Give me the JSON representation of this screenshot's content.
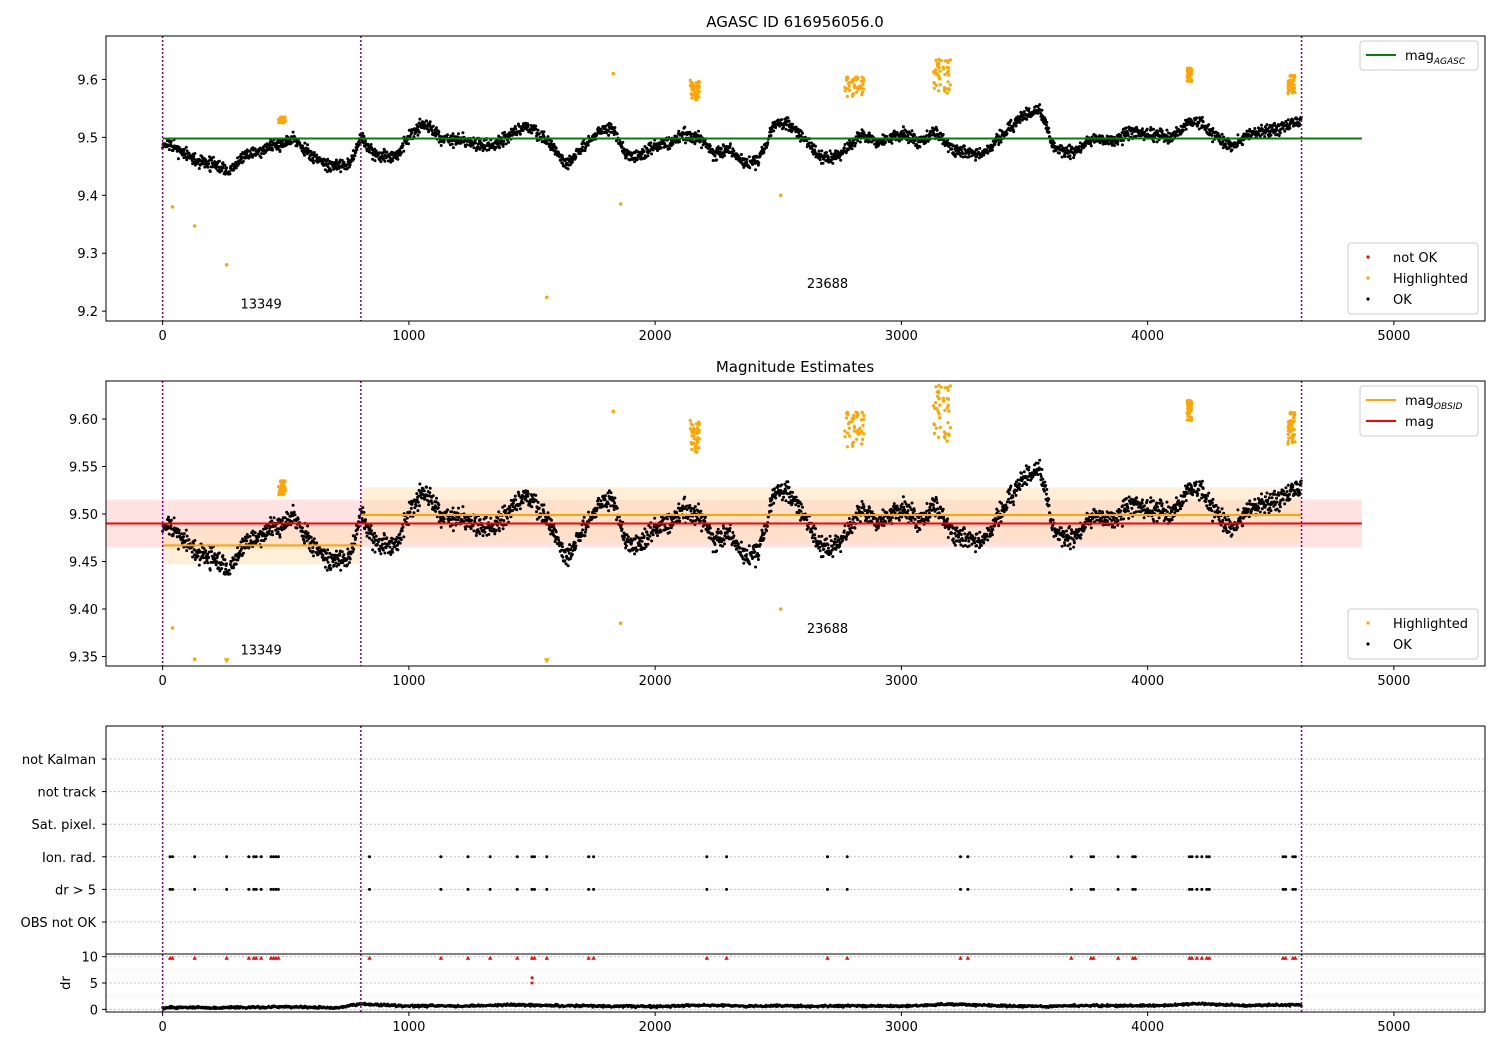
{
  "colors": {
    "ok": "#000000",
    "highlighted": "#ffa500",
    "not_ok": "#ff0000",
    "mag_agasc_line": "#008000",
    "mag_obsid_line": "#ffa500",
    "mag_line": "#ff0000",
    "obsid_boundary": "#800080",
    "band_mag": "#ffc0c0",
    "band_obsid": "#ffdcaa"
  },
  "chart_data": [
    {
      "type": "scatter",
      "title": "AGASC ID 616956056.0",
      "xlim": [
        -230,
        5370
      ],
      "ylim": [
        9.183,
        9.675
      ],
      "xticks": [
        0,
        1000,
        2000,
        3000,
        4000,
        5000
      ],
      "yticks": [
        9.2,
        9.3,
        9.4,
        9.5,
        9.6
      ],
      "ytick_labels": [
        "9.2",
        "9.3",
        "9.4",
        "9.5",
        "9.6"
      ],
      "grid": false,
      "obsid_boundaries": [
        0,
        805,
        4625
      ],
      "obsid_labels": [
        {
          "text": "13349",
          "x": 400,
          "y": 9.205
        },
        {
          "text": "23688",
          "x": 2700,
          "y": 9.24
        }
      ],
      "lines": [
        {
          "key": "mag_agasc",
          "y": 9.498,
          "x": [
            0,
            4870
          ],
          "color": "#008000"
        }
      ],
      "legends": [
        {
          "position": "top-right",
          "entries": [
            {
              "kind": "line",
              "color": "#008000",
              "label": "mag",
              "sub": "AGASC"
            }
          ]
        },
        {
          "position": "bottom-right",
          "entries": [
            {
              "kind": "dot",
              "color": "#ff0000",
              "label": "not OK"
            },
            {
              "kind": "dot",
              "color": "#ffa500",
              "label": "Highlighted"
            },
            {
              "kind": "dot",
              "color": "#000000",
              "label": "OK"
            }
          ]
        }
      ],
      "highlighted_points": [
        [
          40,
          9.38
        ],
        [
          130,
          9.347
        ],
        [
          260,
          9.28
        ],
        [
          1830,
          9.61
        ],
        [
          1860,
          9.385
        ],
        [
          1560,
          9.224
        ],
        [
          2510,
          9.4
        ]
      ],
      "highlighted_clusters": [
        {
          "x": [
            470,
            500
          ],
          "y": [
            9.525,
            9.535
          ]
        },
        {
          "x": [
            2140,
            2180
          ],
          "y": [
            9.565,
            9.6
          ]
        },
        {
          "x": [
            2770,
            2850
          ],
          "y": [
            9.57,
            9.605
          ]
        },
        {
          "x": [
            3130,
            3200
          ],
          "y": [
            9.57,
            9.635
          ]
        },
        {
          "x": [
            4160,
            4180
          ],
          "y": [
            9.595,
            9.62
          ]
        },
        {
          "x": [
            4570,
            4600
          ],
          "y": [
            9.575,
            9.61
          ]
        }
      ],
      "series": [
        {
          "name": "OK",
          "x": [
            0,
            60,
            130,
            200,
            270,
            340,
            420,
            480,
            530,
            600,
            680,
            760,
            805,
            860,
            940,
            1000,
            1060,
            1130,
            1200,
            1270,
            1340,
            1400,
            1460,
            1520,
            1580,
            1640,
            1700,
            1760,
            1820,
            1880,
            1940,
            2000,
            2060,
            2120,
            2180,
            2240,
            2300,
            2360,
            2420,
            2480,
            2540,
            2600,
            2660,
            2720,
            2780,
            2840,
            2900,
            2960,
            3020,
            3080,
            3140,
            3200,
            3260,
            3320,
            3380,
            3440,
            3500,
            3560,
            3620,
            3700,
            3780,
            3860,
            3940,
            4020,
            4100,
            4160,
            4220,
            4280,
            4340,
            4400,
            4460,
            4520,
            4580,
            4625
          ],
          "y": [
            9.49,
            9.48,
            9.46,
            9.455,
            9.44,
            9.47,
            9.48,
            9.49,
            9.5,
            9.47,
            9.45,
            9.455,
            9.5,
            9.47,
            9.465,
            9.5,
            9.525,
            9.5,
            9.495,
            9.49,
            9.485,
            9.5,
            9.52,
            9.51,
            9.485,
            9.455,
            9.48,
            9.505,
            9.52,
            9.47,
            9.465,
            9.485,
            9.49,
            9.505,
            9.5,
            9.47,
            9.48,
            9.455,
            9.46,
            9.52,
            9.525,
            9.5,
            9.47,
            9.465,
            9.48,
            9.505,
            9.49,
            9.5,
            9.505,
            9.49,
            9.51,
            9.48,
            9.475,
            9.47,
            9.49,
            9.52,
            9.535,
            9.55,
            9.48,
            9.475,
            9.5,
            9.495,
            9.51,
            9.505,
            9.5,
            9.525,
            9.525,
            9.5,
            9.485,
            9.5,
            9.51,
            9.515,
            9.52,
            9.53
          ]
        }
      ]
    },
    {
      "type": "scatter",
      "title": "Magnitude Estimates",
      "xlim": [
        -230,
        5370
      ],
      "ylim": [
        9.34,
        9.64
      ],
      "xticks": [
        0,
        1000,
        2000,
        3000,
        4000,
        5000
      ],
      "yticks": [
        9.35,
        9.4,
        9.45,
        9.5,
        9.55,
        9.6
      ],
      "ytick_labels": [
        "9.35",
        "9.40",
        "9.45",
        "9.50",
        "9.55",
        "9.60"
      ],
      "grid": false,
      "obsid_boundaries": [
        0,
        805,
        4625
      ],
      "obsid_labels": [
        {
          "text": "13349",
          "x": 400,
          "y": 9.352
        },
        {
          "text": "23688",
          "x": 2700,
          "y": 9.375
        }
      ],
      "bands": [
        {
          "key": "mag",
          "x": [
            -230,
            4870
          ],
          "y": [
            9.465,
            9.515
          ],
          "color": "#ffc0c0"
        },
        {
          "key": "obsid_13349",
          "x": [
            0,
            805
          ],
          "y": [
            9.447,
            9.487
          ],
          "color": "#ffdcaa"
        },
        {
          "key": "obsid_23688",
          "x": [
            805,
            4625
          ],
          "y": [
            9.47,
            9.528
          ],
          "color": "#ffdcaa"
        }
      ],
      "lines": [
        {
          "key": "mag",
          "y": 9.49,
          "x": [
            -230,
            4870
          ],
          "color": "#ff0000"
        },
        {
          "key": "mag_obsid_13349",
          "y": 9.467,
          "x": [
            0,
            805
          ],
          "color": "#ffa500"
        },
        {
          "key": "mag_obsid_23688",
          "y": 9.499,
          "x": [
            805,
            4625
          ],
          "color": "#ffa500"
        }
      ],
      "legends": [
        {
          "position": "top-right",
          "entries": [
            {
              "kind": "line",
              "color": "#ffa500",
              "label": "mag",
              "sub": "OBSID"
            },
            {
              "kind": "line",
              "color": "#ff0000",
              "label": "mag",
              "sub": ""
            }
          ]
        },
        {
          "position": "bottom-right",
          "entries": [
            {
              "kind": "dot",
              "color": "#ffa500",
              "label": "Highlighted"
            },
            {
              "kind": "dot",
              "color": "#000000",
              "label": "OK"
            }
          ]
        }
      ],
      "highlighted_points": [
        [
          40,
          9.38
        ],
        [
          130,
          9.347
        ],
        [
          1830,
          9.608
        ],
        [
          1860,
          9.385
        ],
        [
          2510,
          9.4
        ]
      ],
      "highlighted_markers": [
        [
          260,
          9.345
        ],
        [
          1560,
          9.345
        ]
      ],
      "highlighted_clusters": [
        {
          "x": [
            470,
            500
          ],
          "y": [
            9.52,
            9.535
          ]
        },
        {
          "x": [
            2140,
            2180
          ],
          "y": [
            9.565,
            9.6
          ]
        },
        {
          "x": [
            2770,
            2850
          ],
          "y": [
            9.57,
            9.608
          ]
        },
        {
          "x": [
            3130,
            3200
          ],
          "y": [
            9.57,
            9.636
          ]
        },
        {
          "x": [
            4160,
            4180
          ],
          "y": [
            9.597,
            9.62
          ]
        },
        {
          "x": [
            4570,
            4600
          ],
          "y": [
            9.573,
            9.61
          ]
        }
      ],
      "series_ref": "same OK series as first panel"
    },
    {
      "type": "scatter",
      "title": "",
      "xlim": [
        -230,
        5370
      ],
      "categories": [
        "not Kalman",
        "not track",
        "Sat. pixel.",
        "Ion. rad.",
        "dr > 5",
        "OBS not OK"
      ],
      "grid": true,
      "obsid_boundaries": [
        0,
        805,
        4625
      ],
      "flag_times": [
        30,
        40,
        130,
        260,
        350,
        370,
        380,
        400,
        440,
        450,
        460,
        470,
        840,
        1130,
        1240,
        1330,
        1440,
        1500,
        1510,
        1560,
        1730,
        1750,
        2210,
        2290,
        2700,
        2780,
        3240,
        3270,
        3690,
        3770,
        3780,
        3880,
        3940,
        3950,
        4170,
        4180,
        4200,
        4220,
        4240,
        4250,
        4550,
        4560,
        4590,
        4600
      ],
      "flag_rows": [
        "Ion. rad.",
        "dr > 5"
      ]
    },
    {
      "type": "line",
      "title": "",
      "ylabel": "dr",
      "xlim": [
        -230,
        5370
      ],
      "ylim": [
        -0.5,
        10.5
      ],
      "xticks": [
        0,
        1000,
        2000,
        3000,
        4000,
        5000
      ],
      "yticks": [
        0,
        5,
        10
      ],
      "ytick_labels": [
        "0",
        "5",
        "10"
      ],
      "grid": true,
      "obsid_boundaries": [
        0,
        805,
        4625
      ],
      "x": [
        0,
        100,
        200,
        300,
        400,
        500,
        600,
        700,
        805,
        900,
        1000,
        1100,
        1200,
        1300,
        1400,
        1500,
        1600,
        1700,
        1800,
        1900,
        2000,
        2100,
        2200,
        2300,
        2400,
        2500,
        2600,
        2700,
        2800,
        2900,
        3000,
        3100,
        3200,
        3300,
        3400,
        3500,
        3600,
        3700,
        3800,
        3900,
        4000,
        4100,
        4200,
        4300,
        4400,
        4500,
        4625
      ],
      "values": [
        0.3,
        0.4,
        0.3,
        0.4,
        0.4,
        0.5,
        0.4,
        0.3,
        1.0,
        0.8,
        0.6,
        0.7,
        0.6,
        0.7,
        0.9,
        0.8,
        0.7,
        0.7,
        0.6,
        0.6,
        0.5,
        0.7,
        0.8,
        0.7,
        0.6,
        0.7,
        0.6,
        0.6,
        0.7,
        0.6,
        0.6,
        0.8,
        1.0,
        0.8,
        0.7,
        0.6,
        0.6,
        0.7,
        0.7,
        0.7,
        0.7,
        0.8,
        1.1,
        0.9,
        0.7,
        0.8,
        0.8
      ],
      "clip_markers": [
        30,
        40,
        130,
        260,
        350,
        370,
        380,
        400,
        440,
        450,
        460,
        470,
        840,
        1130,
        1240,
        1330,
        1440,
        1500,
        1510,
        1560,
        1730,
        1750,
        2210,
        2290,
        2700,
        2780,
        3240,
        3270,
        3690,
        3770,
        3780,
        3880,
        3940,
        3950,
        4170,
        4180,
        4200,
        4220,
        4240,
        4250,
        4550,
        4560,
        4590,
        4600
      ],
      "extra_red_points": [
        [
          1500,
          6.0
        ],
        [
          1500,
          5.0
        ]
      ]
    }
  ]
}
